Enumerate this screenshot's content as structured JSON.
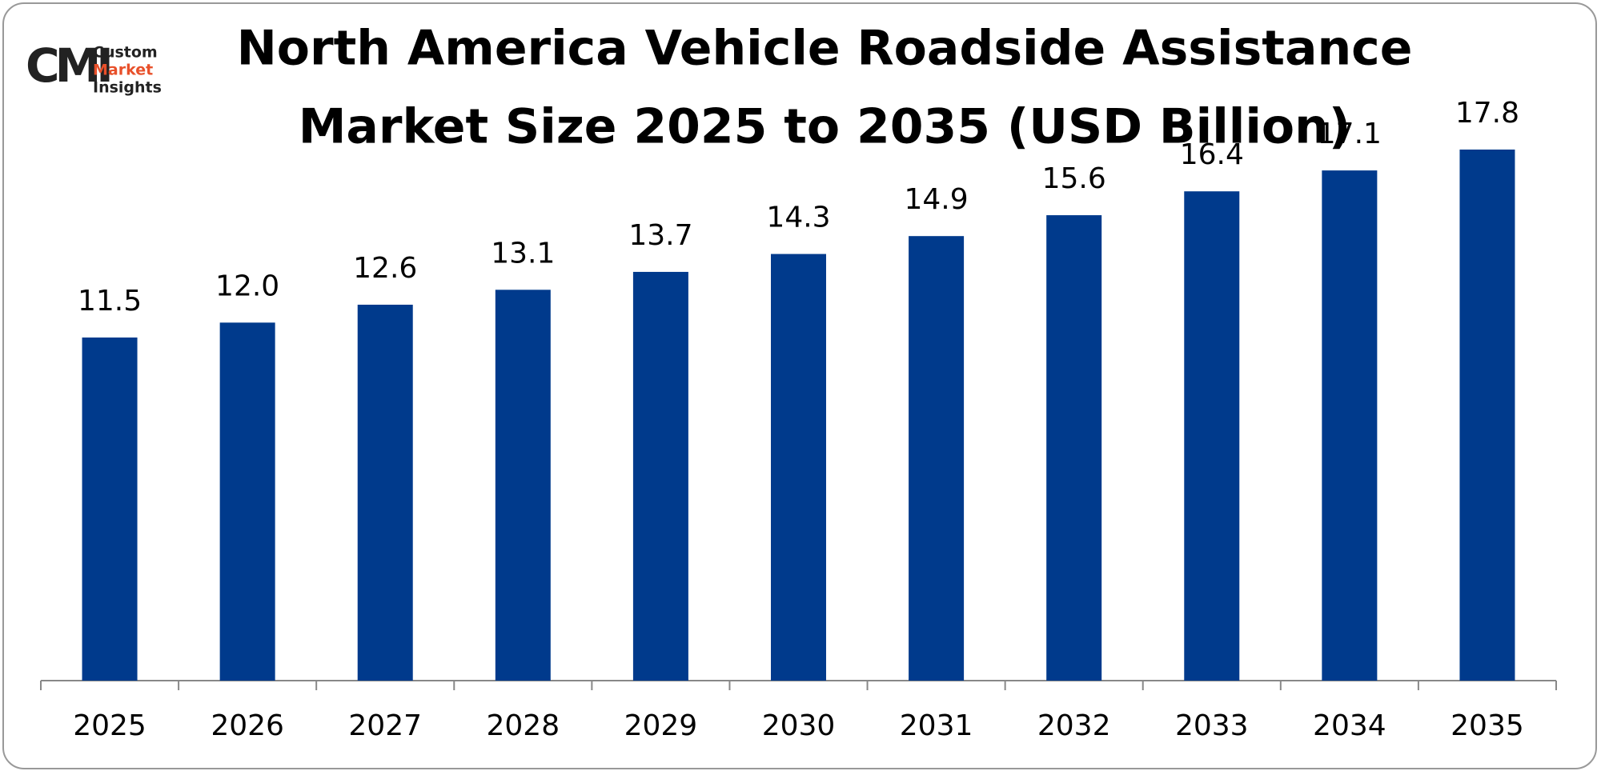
{
  "chart_data": {
    "type": "bar",
    "title": [
      "North America Vehicle Roadside Assistance",
      "Market Size 2025 to 2035 (USD Billion)"
    ],
    "categories": [
      "2025",
      "2026",
      "2027",
      "2028",
      "2029",
      "2030",
      "2031",
      "2032",
      "2033",
      "2034",
      "2035"
    ],
    "values": [
      11.5,
      12.0,
      12.6,
      13.1,
      13.7,
      14.3,
      14.9,
      15.6,
      16.4,
      17.1,
      17.8
    ],
    "value_labels": [
      "11.5",
      "12.0",
      "12.6",
      "13.1",
      "13.7",
      "14.3",
      "14.9",
      "15.6",
      "16.4",
      "17.1",
      "17.8"
    ],
    "color": "#003a8c"
  },
  "logo": {
    "mark": "CMI",
    "lines": [
      "Custom",
      "Market",
      "Insights"
    ]
  }
}
